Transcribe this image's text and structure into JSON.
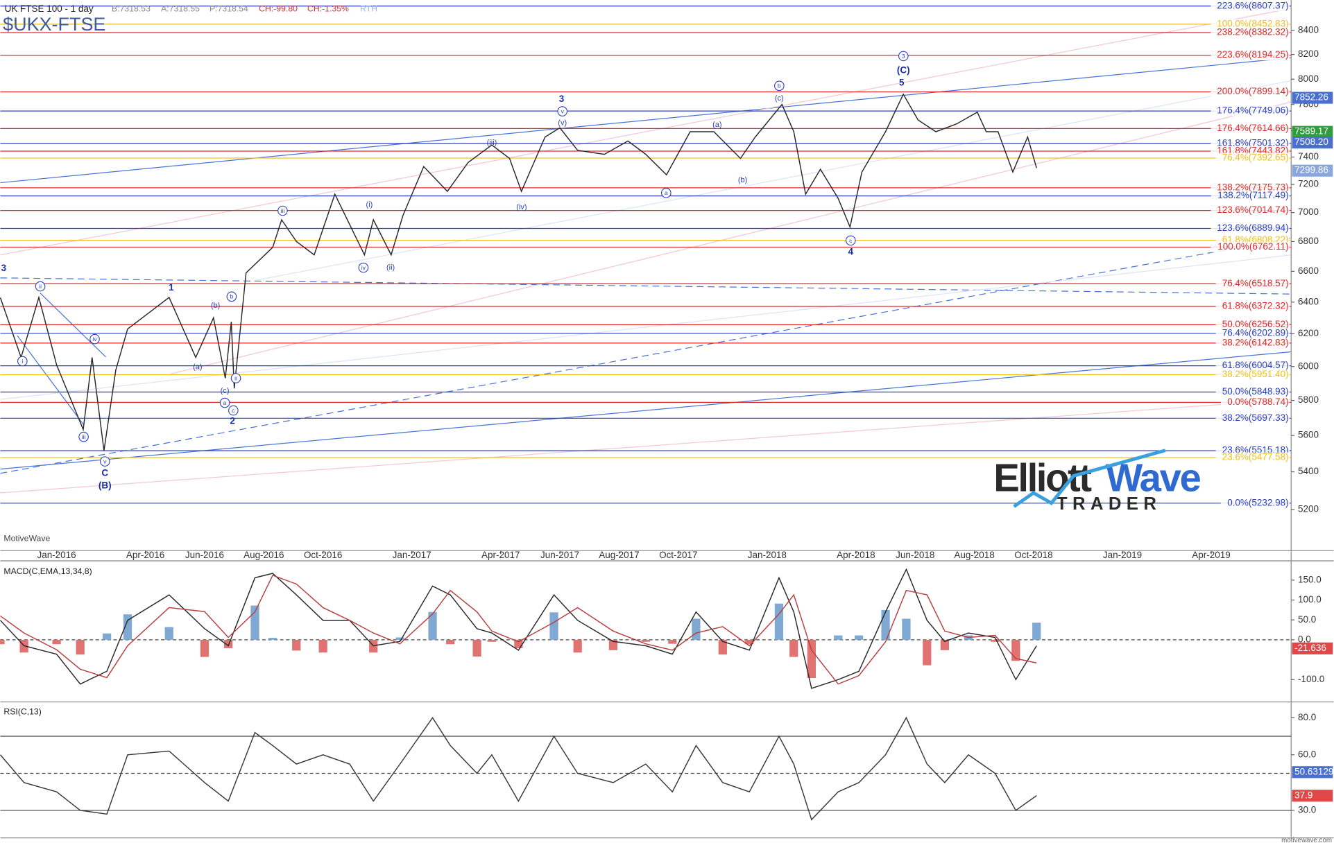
{
  "header": {
    "symbol": "UK FTSE 100 - 1 day",
    "bid": "B:7318.53",
    "ask": "A:7318.55",
    "price": "P:7318.54",
    "change": "CH:-99.80",
    "change_pct": "CH:-1.35%",
    "session": "RTH",
    "ticker": "$UKX-FTSE",
    "watermark": "MotiveWave",
    "footer": "motivewave.com"
  },
  "logo": {
    "word1": "Elliott",
    "word2": "Wave",
    "word3": "TRADER"
  },
  "chart_data": [
    {
      "type": "line",
      "log_scale": true,
      "xlim": [
        -1.9,
        41.7
      ],
      "ylim": [
        4990,
        8660
      ],
      "yticks": [
        5200,
        5400,
        5600,
        5800,
        6000,
        6200,
        6400,
        6600,
        6800,
        7000,
        7200,
        7400,
        7600,
        7800,
        8000,
        8200,
        8400
      ],
      "xticks": [
        {
          "value": 0,
          "label": "Jan-2016"
        },
        {
          "value": 3,
          "label": "Apr-2016"
        },
        {
          "value": 5,
          "label": "Jun-2016"
        },
        {
          "value": 7,
          "label": "Aug-2016"
        },
        {
          "value": 9,
          "label": "Oct-2016"
        },
        {
          "value": 12,
          "label": "Jan-2017"
        },
        {
          "value": 15,
          "label": "Apr-2017"
        },
        {
          "value": 17,
          "label": "Jun-2017"
        },
        {
          "value": 19,
          "label": "Aug-2017"
        },
        {
          "value": 21,
          "label": "Oct-2017"
        },
        {
          "value": 24,
          "label": "Jan-2018"
        },
        {
          "value": 27,
          "label": "Apr-2018"
        },
        {
          "value": 29,
          "label": "Jun-2018"
        },
        {
          "value": 31,
          "label": "Aug-2018"
        },
        {
          "value": 33,
          "label": "Oct-2018"
        },
        {
          "value": 36,
          "label": "Jan-2019"
        },
        {
          "value": 39,
          "label": "Apr-2019"
        }
      ],
      "series": [
        {
          "color": "#2a2a2a",
          "x": [
            -1.9,
            -1.2,
            -0.6,
            0,
            0.9,
            1.2,
            1.6,
            2.0,
            2.4,
            3.8,
            4.7,
            5.3,
            5.7,
            5.9,
            6.0,
            6.4,
            7.3,
            7.6,
            8.1,
            8.7,
            9.4,
            10.4,
            10.7,
            11.3,
            11.7,
            12.4,
            13.2,
            13.9,
            14.7,
            15.3,
            15.7,
            16.5,
            17.0,
            17.6,
            18.5,
            19.3,
            19.9,
            20.6,
            21.4,
            22.2,
            23.1,
            23.6,
            24.5,
            24.9,
            25.3,
            25.8,
            26.4,
            26.8,
            27.2,
            28.0,
            28.6,
            29.1,
            29.7,
            30.4,
            31.1,
            31.4,
            31.8,
            32.3,
            32.8,
            33.1
          ],
          "values": [
            6429,
            6055,
            6430,
            6010,
            5633,
            6055,
            5515,
            5980,
            6230,
            6430,
            6055,
            6300,
            5930,
            6275,
            5870,
            6590,
            6760,
            6950,
            6800,
            6710,
            7130,
            6710,
            6950,
            6710,
            6980,
            7330,
            7150,
            7360,
            7490,
            7390,
            7150,
            7550,
            7620,
            7450,
            7420,
            7520,
            7420,
            7270,
            7590,
            7590,
            7390,
            7550,
            7800,
            7590,
            7130,
            7310,
            7100,
            6900,
            7290,
            7590,
            7880,
            7680,
            7590,
            7650,
            7740,
            7590,
            7590,
            7290,
            7550,
            7318.54
          ]
        }
      ],
      "fib_levels": [
        {
          "label": "223.6%(8607.37)",
          "value": 8607.37,
          "color": "#2a3fbf"
        },
        {
          "label": "100.0%(8452.83)",
          "value": 8452.83,
          "color": "#f0c020"
        },
        {
          "label": "238.2%(8382.32)",
          "value": 8382.32,
          "color": "#e02828"
        },
        {
          "label": "223.6%(8194.25)",
          "value": 8194.25,
          "color": "#e02828"
        },
        {
          "label": "200.0%(7899.14)",
          "value": 7899.14,
          "color": "#e02828"
        },
        {
          "label": "176.4%(7749.06)",
          "value": 7749.06,
          "color": "#2a3fbf"
        },
        {
          "label": "176.4%(7614.66)",
          "value": 7614.66,
          "color": "#e02828"
        },
        {
          "label": "161.8%(7501.32)",
          "value": 7501.32,
          "color": "#2a3fbf"
        },
        {
          "label": "161.8%(7443.82)",
          "value": 7443.82,
          "color": "#e02828"
        },
        {
          "label": "76.4%(7392.65)",
          "value": 7392.65,
          "color": "#f0c020"
        },
        {
          "label": "138.2%(7175.73)",
          "value": 7175.73,
          "color": "#e02828"
        },
        {
          "label": "138.2%(7117.49)",
          "value": 7117.49,
          "color": "#2a3fbf"
        },
        {
          "label": "123.6%(7014.74)",
          "value": 7014.74,
          "color": "#e02828"
        },
        {
          "label": "123.6%(6889.94)",
          "value": 6889.94,
          "color": "#2a3fbf"
        },
        {
          "label": "61.8%(6808.22)",
          "value": 6808.22,
          "color": "#f0c020"
        },
        {
          "label": "100.0%(6762.11)",
          "value": 6762.11,
          "color": "#e02828"
        },
        {
          "label": "76.4%(6518.57)",
          "value": 6518.57,
          "color": "#e02828"
        },
        {
          "label": "61.8%(6372.32)",
          "value": 6372.32,
          "color": "#e02828"
        },
        {
          "label": "50.0%(6256.52)",
          "value": 6256.52,
          "color": "#e02828"
        },
        {
          "label": "76.4%(6202.89)",
          "value": 6202.89,
          "color": "#2a3fbf"
        },
        {
          "label": "38.2%(6142.83)",
          "value": 6142.83,
          "color": "#e02828"
        },
        {
          "label": "61.8%(6004.57)",
          "value": 6004.57,
          "color": "#2a3fbf"
        },
        {
          "label": "38.2%(5951.40)",
          "value": 5951.4,
          "color": "#f0c020"
        },
        {
          "label": "50.0%(5848.93)",
          "value": 5848.93,
          "color": "#2a3fbf"
        },
        {
          "label": "0.0%(5788.74)",
          "value": 5788.74,
          "color": "#e02828"
        },
        {
          "label": "38.2%(5697.33)",
          "value": 5697.33,
          "color": "#2a3fbf"
        },
        {
          "label": "23.6%(5515.18)",
          "value": 5515.18,
          "color": "#2a3fbf"
        },
        {
          "label": "23.6%(5477.58)",
          "value": 5477.58,
          "color": "#f0c020"
        },
        {
          "label": "0.0%(5232.98)",
          "value": 5232.98,
          "color": "#2a3fbf"
        }
      ],
      "price_markers": [
        {
          "value": 7852.26,
          "label": "7852.26",
          "color": "#4a6fd0"
        },
        {
          "value": 7589.17,
          "label": "7589.17",
          "color": "#2e9e3a"
        },
        {
          "value": 7508.2,
          "label": "7508.20",
          "color": "#4a6fd0"
        },
        {
          "value": 7299.86,
          "label": "7299.86",
          "color": "#8aa6e0"
        }
      ],
      "annotations": [
        {
          "text": "3",
          "circled": true
        },
        {
          "text": "(C)",
          "circled": false
        },
        {
          "text": "5",
          "circled": false
        },
        {
          "text": "b",
          "circled": true
        },
        {
          "text": "(c)",
          "circled": false
        },
        {
          "text": "3",
          "circled": false
        },
        {
          "text": "v",
          "circled": true
        },
        {
          "text": "(v)",
          "circled": false
        },
        {
          "text": "(iii)",
          "circled": false
        },
        {
          "text": "(a)",
          "circled": false
        },
        {
          "text": "(b)",
          "circled": false
        },
        {
          "text": "a",
          "circled": true
        },
        {
          "text": "(iv)",
          "circled": false
        },
        {
          "text": "iii",
          "circled": true
        },
        {
          "text": "(i)",
          "circled": false
        },
        {
          "text": "iv",
          "circled": true
        },
        {
          "text": "(ii)",
          "circled": false
        },
        {
          "text": "c",
          "circled": true
        },
        {
          "text": "4",
          "circled": false
        },
        {
          "text": "ii",
          "circled": true
        },
        {
          "text": "1",
          "circled": false
        },
        {
          "text": "(b)",
          "circled": false
        },
        {
          "text": "b",
          "circled": true
        },
        {
          "text": "iv",
          "circled": true
        },
        {
          "text": "i",
          "circled": true
        },
        {
          "text": "(a)",
          "circled": false
        },
        {
          "text": "ii",
          "circled": true
        },
        {
          "text": "(c)",
          "circled": false
        },
        {
          "text": "a",
          "circled": true
        },
        {
          "text": "c",
          "circled": true
        },
        {
          "text": "2",
          "circled": false
        },
        {
          "text": "iii",
          "circled": true
        },
        {
          "text": "v",
          "circled": true
        },
        {
          "text": "C",
          "circled": false
        },
        {
          "text": "(B)",
          "circled": false
        },
        {
          "text": "3",
          "circled": false
        }
      ]
    },
    {
      "type": "macd",
      "title": "MACD(C,EMA,13,34,8)",
      "xlim": [
        -1.9,
        41.7
      ],
      "ylim": [
        -154,
        192
      ],
      "yticks": [
        {
          "value": -100,
          "label": "-100.0"
        },
        {
          "value": 0,
          "label": "0.0"
        },
        {
          "value": 50,
          "label": "50.0"
        },
        {
          "value": 100,
          "label": "100.0"
        },
        {
          "value": 150,
          "label": "150.0"
        }
      ],
      "x": [
        -1.9,
        -1.1,
        0,
        0.8,
        1.7,
        2.4,
        3.8,
        5.0,
        5.8,
        6.7,
        7.3,
        8.1,
        9.0,
        9.9,
        10.7,
        11.6,
        12.7,
        13.3,
        14.2,
        14.7,
        15.6,
        16.8,
        17.6,
        18.8,
        19.9,
        20.8,
        21.6,
        22.5,
        23.4,
        24.4,
        24.9,
        25.5,
        26.4,
        27.1,
        28.0,
        28.7,
        29.4,
        30.0,
        30.8,
        31.7,
        32.4,
        33.1
      ],
      "series": [
        {
          "color": "#2a2a2a",
          "values": [
            49,
            -15,
            -36,
            -111,
            -79,
            49,
            113,
            28,
            -15,
            156,
            167,
            113,
            49,
            49,
            -15,
            -4,
            135,
            113,
            28,
            17,
            -26,
            113,
            49,
            -4,
            -15,
            -36,
            70,
            -4,
            -26,
            156,
            70,
            -122,
            -100,
            -79,
            70,
            177,
            49,
            -4,
            17,
            6,
            -100,
            -15
          ]
        },
        {
          "color": "#b84040",
          "values": [
            60,
            17,
            -25,
            -74,
            -95,
            -15,
            81,
            71,
            6,
            70,
            162,
            140,
            81,
            49,
            17,
            -10,
            65,
            124,
            70,
            22,
            -5,
            44,
            81,
            22,
            -10,
            -26,
            17,
            33,
            -15,
            65,
            113,
            -26,
            -111,
            -90,
            -5,
            124,
            113,
            22,
            6,
            11,
            -47,
            -58
          ]
        }
      ],
      "histogram": {
        "pos_color": "#7fa9d2",
        "neg_color": "#e07272",
        "values": [
          -11,
          -32,
          -11,
          -37,
          16,
          64,
          32,
          -43,
          -21,
          86,
          5,
          -27,
          -32,
          0,
          -32,
          6,
          70,
          -11,
          -42,
          -5,
          -21,
          69,
          -32,
          -26,
          -5,
          -10,
          53,
          -37,
          -11,
          91,
          -43,
          -96,
          11,
          11,
          75,
          53,
          -64,
          -26,
          11,
          -5,
          -53,
          43
        ]
      },
      "markers": [
        {
          "value": -21.636,
          "color": "#e04848"
        }
      ]
    },
    {
      "type": "line",
      "title": "RSI(C,13)",
      "xlim": [
        -1.9,
        41.7
      ],
      "ylim": [
        15.6,
        87.6
      ],
      "yticks": [
        {
          "value": 30,
          "label": "30.0"
        },
        {
          "value": 60,
          "label": "60.0"
        },
        {
          "value": 80,
          "label": "80.0"
        }
      ],
      "ref_lines": [
        30,
        50,
        70
      ],
      "color": "#3a3a3a",
      "x": [
        -1.9,
        -1.1,
        0,
        0.8,
        1.7,
        2.4,
        3.8,
        5.0,
        5.8,
        6.7,
        7.3,
        8.1,
        9.0,
        9.9,
        10.7,
        11.6,
        12.7,
        13.3,
        14.2,
        14.7,
        15.6,
        16.8,
        17.6,
        18.8,
        19.9,
        20.8,
        21.6,
        22.5,
        23.4,
        24.4,
        24.9,
        25.5,
        26.4,
        27.1,
        28.0,
        28.7,
        29.4,
        30.0,
        30.8,
        31.7,
        32.4,
        33.1
      ],
      "values": [
        60,
        45,
        40,
        30,
        28,
        60,
        62,
        45,
        35,
        72,
        65,
        55,
        60,
        55,
        35,
        55,
        80,
        65,
        50,
        60,
        35,
        70,
        50,
        45,
        55,
        40,
        65,
        45,
        40,
        70,
        55,
        25,
        40,
        45,
        60,
        80,
        55,
        45,
        60,
        50,
        30,
        38
      ],
      "markers": [
        {
          "value": 50.63129,
          "color": "#4a6fd0"
        },
        {
          "value": 37.9,
          "color": "#e04848"
        }
      ]
    }
  ]
}
